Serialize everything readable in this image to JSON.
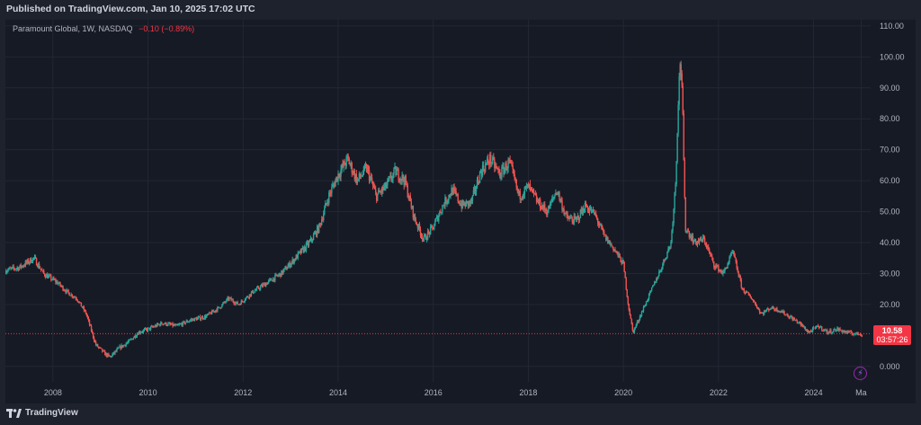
{
  "header": {
    "published": "Published on TradingView.com, Jan 10, 2025 17:02 UTC"
  },
  "symbol": {
    "name": "Paramount Global, 1W, NASDAQ",
    "change": "−0.10 (−0.89%)"
  },
  "price_tag": {
    "price": "10.58",
    "countdown": "03:57:26"
  },
  "footer": {
    "brand": "TradingView",
    "logo_icon": "tradingview-logo-icon"
  },
  "colors": {
    "up": "#26a69a",
    "down": "#ef5350",
    "last_price": "#f23645",
    "background": "#161a25",
    "grid": "#232734"
  },
  "chart_data": {
    "type": "line",
    "title": "Paramount Global, 1W, NASDAQ",
    "xlabel": "",
    "ylabel": "",
    "x_tick_labels": [
      "2008",
      "2010",
      "2012",
      "2014",
      "2016",
      "2018",
      "2020",
      "2022",
      "2024",
      "Ma"
    ],
    "y_tick_labels": [
      "110.00",
      "100.00",
      "90.00",
      "80.00",
      "70.00",
      "60.00",
      "50.00",
      "40.00",
      "30.00",
      "20.00",
      "0.000"
    ],
    "ylim": [
      -5,
      112
    ],
    "xlim": [
      2007.0,
      2025.2
    ],
    "last_price": 10.58,
    "grid": true,
    "series": [
      {
        "values": [
          [
            2007.0,
            31
          ],
          [
            2007.3,
            32
          ],
          [
            2007.6,
            35
          ],
          [
            2007.8,
            30
          ],
          [
            2008.1,
            27
          ],
          [
            2008.3,
            24
          ],
          [
            2008.5,
            22
          ],
          [
            2008.7,
            17
          ],
          [
            2008.9,
            7
          ],
          [
            2009.1,
            4
          ],
          [
            2009.2,
            3
          ],
          [
            2009.4,
            6
          ],
          [
            2009.6,
            8
          ],
          [
            2009.8,
            11
          ],
          [
            2010.0,
            12
          ],
          [
            2010.3,
            14
          ],
          [
            2010.6,
            13
          ],
          [
            2010.9,
            15
          ],
          [
            2011.2,
            16
          ],
          [
            2011.5,
            19
          ],
          [
            2011.7,
            22
          ],
          [
            2011.9,
            20
          ],
          [
            2012.2,
            24
          ],
          [
            2012.5,
            27
          ],
          [
            2012.8,
            30
          ],
          [
            2013.1,
            35
          ],
          [
            2013.4,
            40
          ],
          [
            2013.6,
            45
          ],
          [
            2013.8,
            55
          ],
          [
            2014.0,
            62
          ],
          [
            2014.2,
            67
          ],
          [
            2014.4,
            60
          ],
          [
            2014.6,
            64
          ],
          [
            2014.8,
            55
          ],
          [
            2015.0,
            58
          ],
          [
            2015.2,
            63
          ],
          [
            2015.4,
            60
          ],
          [
            2015.6,
            48
          ],
          [
            2015.8,
            41
          ],
          [
            2016.0,
            45
          ],
          [
            2016.2,
            52
          ],
          [
            2016.4,
            57
          ],
          [
            2016.6,
            52
          ],
          [
            2016.8,
            53
          ],
          [
            2017.0,
            63
          ],
          [
            2017.2,
            67
          ],
          [
            2017.4,
            62
          ],
          [
            2017.6,
            66
          ],
          [
            2017.8,
            55
          ],
          [
            2018.0,
            58
          ],
          [
            2018.2,
            53
          ],
          [
            2018.4,
            50
          ],
          [
            2018.6,
            57
          ],
          [
            2018.8,
            48
          ],
          [
            2019.0,
            47
          ],
          [
            2019.2,
            52
          ],
          [
            2019.4,
            49
          ],
          [
            2019.6,
            42
          ],
          [
            2019.8,
            38
          ],
          [
            2020.0,
            33
          ],
          [
            2020.1,
            20
          ],
          [
            2020.2,
            11
          ],
          [
            2020.4,
            18
          ],
          [
            2020.6,
            25
          ],
          [
            2020.8,
            32
          ],
          [
            2021.0,
            40
          ],
          [
            2021.1,
            60
          ],
          [
            2021.15,
            85
          ],
          [
            2021.2,
            101
          ],
          [
            2021.25,
            80
          ],
          [
            2021.3,
            45
          ],
          [
            2021.5,
            40
          ],
          [
            2021.7,
            41
          ],
          [
            2021.9,
            33
          ],
          [
            2022.1,
            30
          ],
          [
            2022.3,
            37
          ],
          [
            2022.5,
            25
          ],
          [
            2022.7,
            22
          ],
          [
            2022.9,
            17
          ],
          [
            2023.1,
            19
          ],
          [
            2023.3,
            18
          ],
          [
            2023.5,
            16
          ],
          [
            2023.7,
            14
          ],
          [
            2023.9,
            11
          ],
          [
            2024.1,
            13
          ],
          [
            2024.3,
            11
          ],
          [
            2024.5,
            12
          ],
          [
            2024.7,
            11
          ],
          [
            2024.9,
            10.5
          ],
          [
            2025.03,
            10.58
          ]
        ]
      }
    ]
  }
}
